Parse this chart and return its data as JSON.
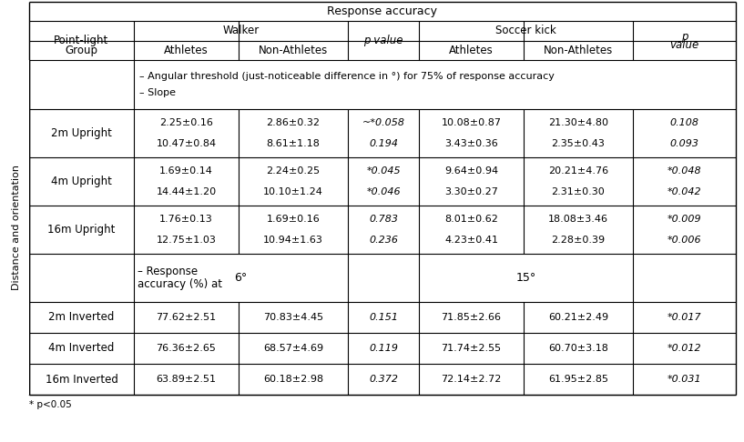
{
  "title": "Response accuracy",
  "left_label": "Distance and orientation",
  "note_line1": "– Angular threshold (just-noticeable difference in °) for 75% of response accuracy",
  "note_line2": "– Slope",
  "rows": [
    {
      "label": "2m Upright",
      "data": [
        [
          "2.25±0.16",
          "2.86±0.32",
          "~*0.058",
          "10.08±0.87",
          "21.30±4.80",
          "0.108"
        ],
        [
          "10.47±0.84",
          "8.61±1.18",
          "0.194",
          "3.43±0.36",
          "2.35±0.43",
          "0.093"
        ]
      ]
    },
    {
      "label": "4m Upright",
      "data": [
        [
          "1.69±0.14",
          "2.24±0.25",
          "*0.045",
          "9.64±0.94",
          "20.21±4.76",
          "*0.048"
        ],
        [
          "14.44±1.20",
          "10.10±1.24",
          "*0.046",
          "3.30±0.27",
          "2.31±0.30",
          "*0.042"
        ]
      ]
    },
    {
      "label": "16m Upright",
      "data": [
        [
          "1.76±0.13",
          "1.69±0.16",
          "0.783",
          "8.01±0.62",
          "18.08±3.46",
          "*0.009"
        ],
        [
          "12.75±1.03",
          "10.94±1.63",
          "0.236",
          "4.23±0.41",
          "2.28±0.39",
          "*0.006"
        ]
      ]
    }
  ],
  "mid_walker_val": "6°",
  "mid_soccer_val": "15°",
  "bottom_rows": [
    {
      "label": "2m Inverted",
      "data": [
        "77.62±2.51",
        "70.83±4.45",
        "0.151",
        "71.85±2.66",
        "60.21±2.49",
        "*0.017"
      ]
    },
    {
      "label": "4m Inverted",
      "data": [
        "76.36±2.65",
        "68.57±4.69",
        "0.119",
        "71.74±2.55",
        "60.70±3.18",
        "*0.012"
      ]
    },
    {
      "label": "16m Inverted",
      "data": [
        "63.89±2.51",
        "60.18±2.98",
        "0.372",
        "72.14±2.72",
        "61.95±2.85",
        "*0.031"
      ]
    }
  ],
  "bg_color": "#ffffff",
  "text_color": "#000000",
  "line_color": "#000000",
  "footnote": "* p<0.05"
}
